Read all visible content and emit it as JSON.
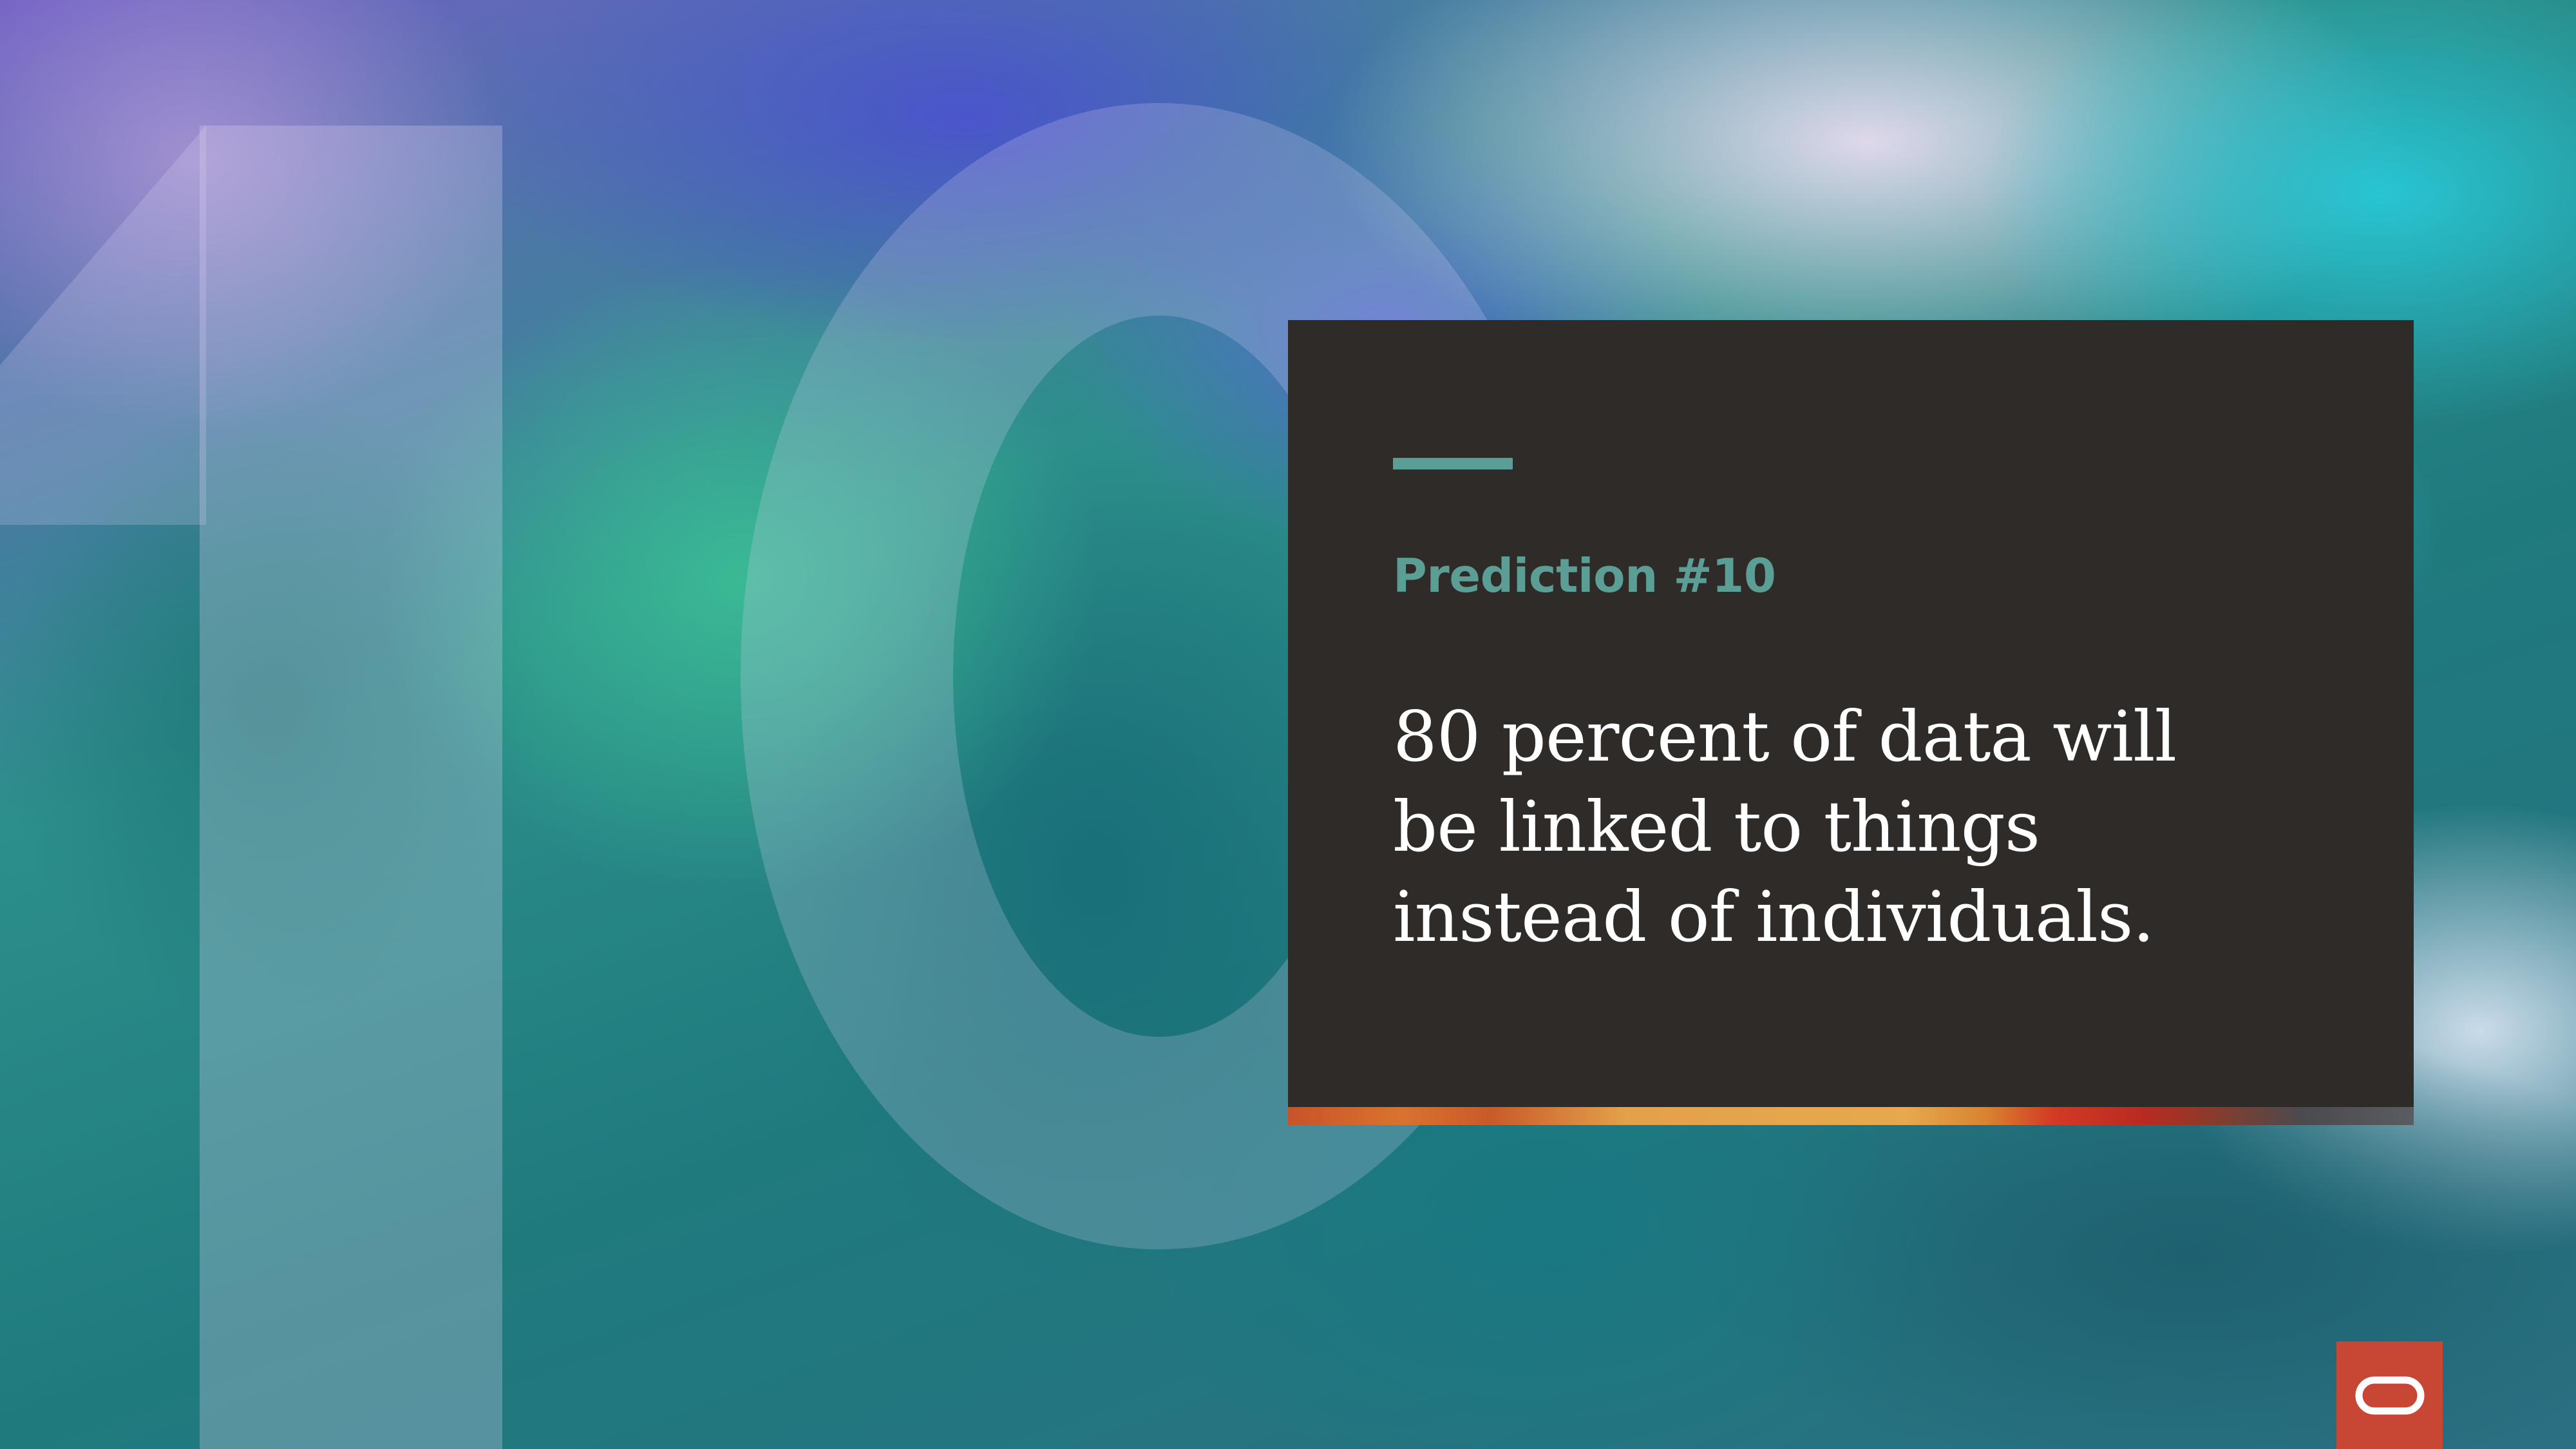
{
  "slide": {
    "eyebrow": "Prediction #10",
    "headline_lines": [
      "80 percent of data will",
      "be linked to things",
      "instead of individuals."
    ]
  },
  "colors": {
    "card_background": "#2e2b29",
    "accent_teal": "#5b9e95",
    "headline_text": "#ffffff",
    "logo_red": "#c74634"
  },
  "icons": {
    "logo": "oracle-logo-icon"
  }
}
